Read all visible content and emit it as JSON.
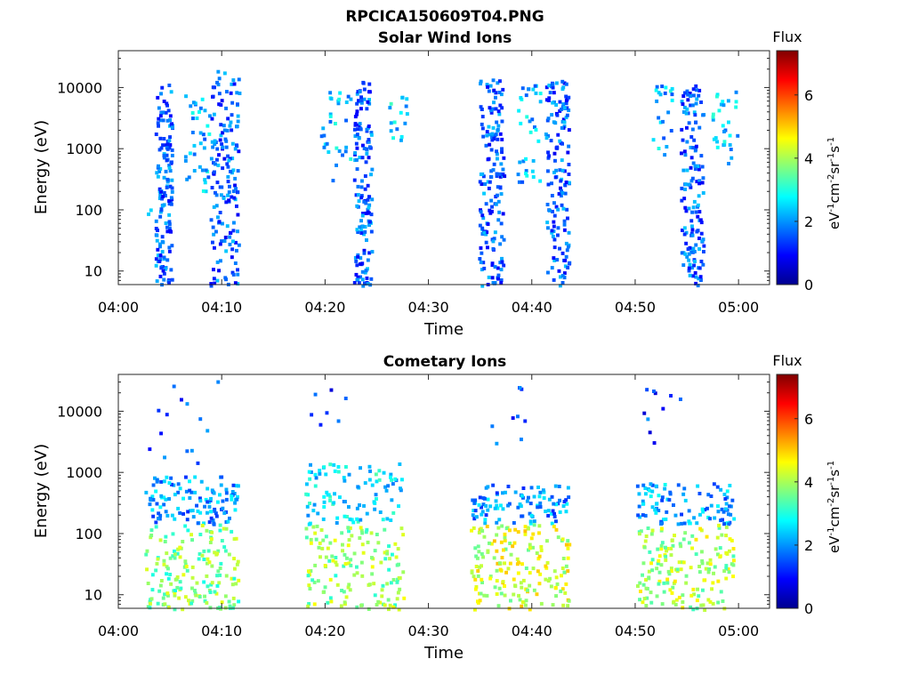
{
  "figure": {
    "title": "RPCICA150609T04.PNG"
  },
  "colorbar": {
    "label": "Flux",
    "unit_text": "eV-1cm-2sr-1s-1",
    "range": [
      0,
      7.4
    ],
    "ticks": [
      "0",
      "2",
      "4",
      "6"
    ],
    "colormap": "jet"
  },
  "chart_data": [
    {
      "type": "heatmap",
      "title": "Solar Wind Ions",
      "xlabel": "Time",
      "ylabel": "Energy (eV)",
      "x_ticks": [
        "04:00",
        "04:10",
        "04:20",
        "04:30",
        "04:40",
        "04:50",
        "05:00"
      ],
      "y_ticks": [
        "10",
        "100",
        "1000",
        "10000"
      ],
      "y_scale": "log",
      "xlim_minutes": [
        0,
        63
      ],
      "ylim": [
        6,
        40000
      ],
      "clusters": [
        {
          "t_start": 2.3,
          "t_end": 3.0,
          "e_min": 80,
          "e_max": 120,
          "flux": 2.2,
          "count": 2
        },
        {
          "t_start": 3.5,
          "t_end": 5.1,
          "e_min": 6,
          "e_max": 12000,
          "flux": 1.6,
          "count": 150
        },
        {
          "t_start": 6.3,
          "t_end": 8.7,
          "e_min": 200,
          "e_max": 9000,
          "flux": 2.3,
          "count": 38
        },
        {
          "t_start": 8.8,
          "t_end": 11.6,
          "e_min": 6,
          "e_max": 20000,
          "flux": 1.6,
          "count": 160
        },
        {
          "t_start": 19.5,
          "t_end": 22.5,
          "e_min": 250,
          "e_max": 10000,
          "flux": 2.3,
          "count": 30
        },
        {
          "t_start": 22.7,
          "t_end": 24.4,
          "e_min": 6,
          "e_max": 14000,
          "flux": 1.6,
          "count": 150
        },
        {
          "t_start": 26.0,
          "t_end": 27.8,
          "e_min": 1200,
          "e_max": 8000,
          "flux": 2.5,
          "count": 16
        },
        {
          "t_start": 34.8,
          "t_end": 37.2,
          "e_min": 6,
          "e_max": 15000,
          "flux": 1.6,
          "count": 160
        },
        {
          "t_start": 38.5,
          "t_end": 40.8,
          "e_min": 300,
          "e_max": 12000,
          "flux": 2.2,
          "count": 34
        },
        {
          "t_start": 41.2,
          "t_end": 43.5,
          "e_min": 6,
          "e_max": 15000,
          "flux": 1.6,
          "count": 150
        },
        {
          "t_start": 51.6,
          "t_end": 53.5,
          "e_min": 800,
          "e_max": 12000,
          "flux": 2.3,
          "count": 22
        },
        {
          "t_start": 54.3,
          "t_end": 56.5,
          "e_min": 6,
          "e_max": 12000,
          "flux": 1.6,
          "count": 150
        },
        {
          "t_start": 57.3,
          "t_end": 59.9,
          "e_min": 600,
          "e_max": 9000,
          "flux": 2.4,
          "count": 30
        }
      ]
    },
    {
      "type": "heatmap",
      "title": "Cometary Ions",
      "xlabel": "Time",
      "ylabel": "Energy (eV)",
      "x_ticks": [
        "04:00",
        "04:10",
        "04:20",
        "04:30",
        "04:40",
        "04:50",
        "05:00"
      ],
      "y_ticks": [
        "10",
        "100",
        "1000",
        "10000"
      ],
      "y_scale": "log",
      "xlim_minutes": [
        0,
        63
      ],
      "ylim": [
        6,
        40000
      ],
      "clusters": [
        {
          "t_start": 2.5,
          "t_end": 11.5,
          "e_min": 150,
          "e_max": 900,
          "flux": 2.0,
          "count": 120
        },
        {
          "t_start": 2.5,
          "t_end": 11.5,
          "e_min": 6,
          "e_max": 150,
          "flux": 3.7,
          "count": 170
        },
        {
          "t_start": 2.8,
          "t_end": 9.5,
          "e_min": 1200,
          "e_max": 40000,
          "flux": 1.4,
          "count": 14
        },
        {
          "t_start": 18.0,
          "t_end": 27.5,
          "e_min": 150,
          "e_max": 1500,
          "flux": 2.6,
          "count": 100
        },
        {
          "t_start": 18.0,
          "t_end": 27.5,
          "e_min": 6,
          "e_max": 150,
          "flux": 3.8,
          "count": 150
        },
        {
          "t_start": 18.5,
          "t_end": 22.5,
          "e_min": 6000,
          "e_max": 30000,
          "flux": 1.4,
          "count": 7
        },
        {
          "t_start": 34.0,
          "t_end": 43.5,
          "e_min": 150,
          "e_max": 700,
          "flux": 2.0,
          "count": 100
        },
        {
          "t_start": 34.0,
          "t_end": 43.5,
          "e_min": 6,
          "e_max": 150,
          "flux": 4.3,
          "count": 180
        },
        {
          "t_start": 34.5,
          "t_end": 41.0,
          "e_min": 2000,
          "e_max": 30000,
          "flux": 1.4,
          "count": 9
        },
        {
          "t_start": 50.0,
          "t_end": 59.5,
          "e_min": 150,
          "e_max": 700,
          "flux": 2.1,
          "count": 100
        },
        {
          "t_start": 50.0,
          "t_end": 59.5,
          "e_min": 6,
          "e_max": 150,
          "flux": 4.0,
          "count": 170
        },
        {
          "t_start": 50.0,
          "t_end": 54.5,
          "e_min": 3000,
          "e_max": 30000,
          "flux": 1.4,
          "count": 10
        }
      ]
    }
  ]
}
